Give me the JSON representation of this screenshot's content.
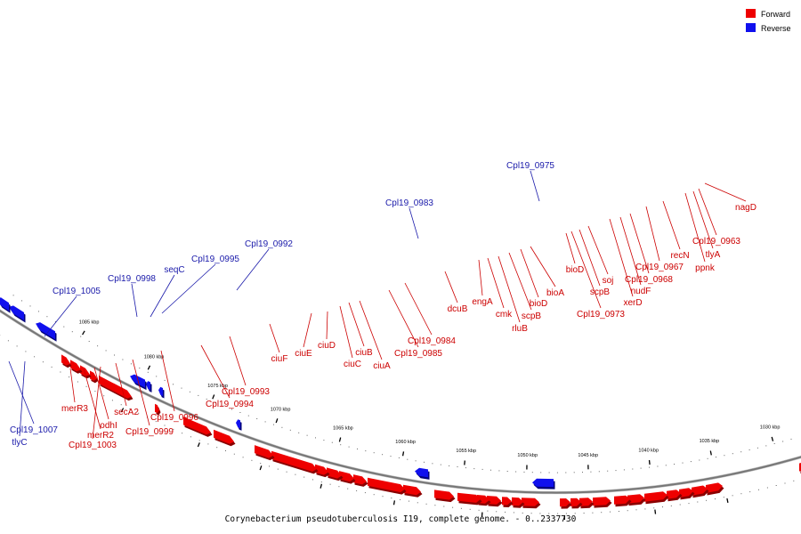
{
  "caption": "Corynebacterium pseudotuberculosis I19, complete genome. - 0..2337730",
  "legend": [
    {
      "label": "Forward",
      "color": "#ee0000"
    },
    {
      "label": "Reverse",
      "color": "#1010ee"
    }
  ],
  "colors": {
    "forward": "#ee0000",
    "forward_label": "#cc0000",
    "reverse": "#1010ee",
    "reverse_label": "#1a1aaa",
    "backbone": "#777777"
  },
  "ticks": [
    "1030 kbp",
    "1035 kbp",
    "1040 kbp",
    "1045 kbp",
    "1050 kbp",
    "1055 kbp",
    "1060 kbp",
    "1065 kbp",
    "1070 kbp",
    "1075 kbp",
    "1080 kbp",
    "1085 kbp"
  ],
  "reverse_genes": [
    "Cpl19_0975",
    "Cpl19_0983",
    "Cpl19_0992",
    "Cpl19_0995",
    "seqC",
    "Cpl19_0998",
    "Cpl19_1005",
    "Cpl19_1007",
    "tlyC"
  ],
  "forward_genes": [
    "nagD",
    "Cpl19_0963",
    "tlyA",
    "ppnk",
    "recN",
    "Cpl19_0967",
    "Cpl19_0968",
    "nudF",
    "xerD",
    "soj",
    "scpB",
    "Cpl19_0973",
    "bioD",
    "bioA",
    "bioD",
    "scpB",
    "rluB",
    "cmk",
    "engA",
    "dcuB",
    "Cpl19_0984",
    "Cpl19_0985",
    "ciuA",
    "ciuB",
    "ciuC",
    "ciuD",
    "ciuE",
    "ciuF",
    "Cpl19_0993",
    "Cpl19_0994",
    "Cpl19_0996",
    "Cpl19_0999",
    "secA2",
    "Cpl19_1003",
    "odhI",
    "merR2",
    "merR3"
  ]
}
